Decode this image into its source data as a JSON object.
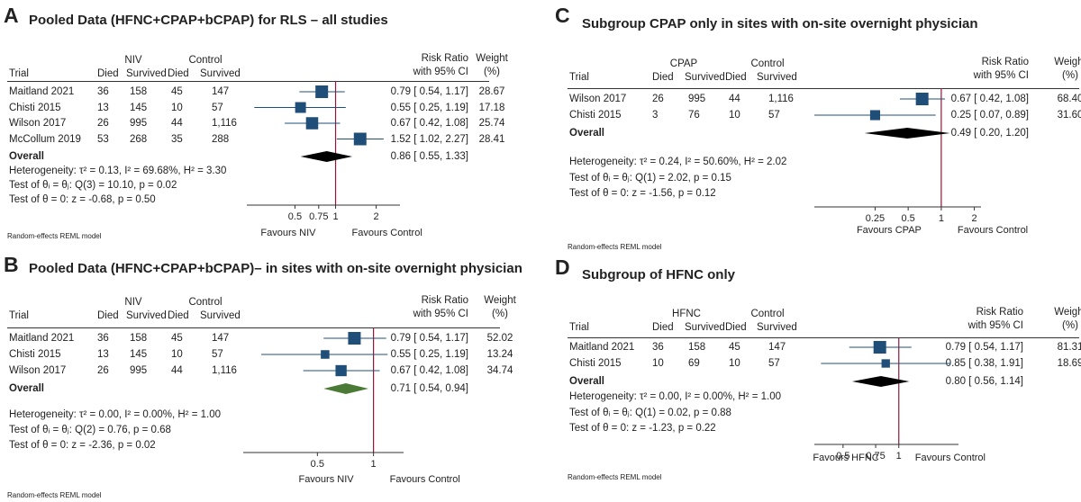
{
  "chart_data": [
    {
      "type": "forest",
      "label": "A",
      "title": "Pooled Data (HFNC+CPAP+bCPAP) for RLS – all studies",
      "group1": "NIV",
      "group2": "Control",
      "col_trial": "Trial",
      "col_died": "Died",
      "col_survived": "Survived",
      "col_rr1": "Risk Ratio",
      "col_rr2": "with 95% CI",
      "col_w1": "Weight",
      "col_w2": "(%)",
      "scale": "log",
      "xlim": [
        0.22,
        3.0
      ],
      "ticks": [
        0.5,
        0.75,
        1,
        2
      ],
      "tick_labels": [
        "0.5",
        "0.75",
        "1",
        "2"
      ],
      "favours_left": "Favours NIV",
      "favours_right": "Favours Control",
      "model": "Random-effects REML model",
      "overall_label": "Overall",
      "diamond_color": "#000000",
      "rows": [
        {
          "trial": "Maitland 2021",
          "d1": "36",
          "s1": "158",
          "d2": "45",
          "s2": "147",
          "rr": 0.79,
          "lo": 0.54,
          "hi": 1.17,
          "ci": "0.79 [ 0.54, 1.17]",
          "weight": "28.67",
          "w": 28.67
        },
        {
          "trial": "Chisti 2015",
          "d1": "13",
          "s1": "145",
          "d2": "10",
          "s2": "57",
          "rr": 0.55,
          "lo": 0.25,
          "hi": 1.19,
          "ci": "0.55 [ 0.25, 1.19]",
          "weight": "17.18",
          "w": 17.18
        },
        {
          "trial": "Wilson 2017",
          "d1": "26",
          "s1": "995",
          "d2": "44",
          "s2": "1,116",
          "rr": 0.67,
          "lo": 0.42,
          "hi": 1.08,
          "ci": "0.67 [ 0.42, 1.08]",
          "weight": "25.74",
          "w": 25.74
        },
        {
          "trial": "McCollum 2019",
          "d1": "53",
          "s1": "268",
          "d2": "35",
          "s2": "288",
          "rr": 1.52,
          "lo": 1.02,
          "hi": 2.27,
          "ci": "1.52 [ 1.02, 2.27]",
          "weight": "28.41",
          "w": 28.41
        }
      ],
      "overall": {
        "rr": 0.86,
        "lo": 0.55,
        "hi": 1.33,
        "ci": "0.86 [ 0.55, 1.33]"
      },
      "stats": [
        "Heterogeneity: τ² = 0.13, I² = 69.68%, H² = 3.30",
        "Test of θᵢ = θⱼ: Q(3) = 10.10, p = 0.02",
        "Test of θ = 0: z = -0.68, p = 0.50"
      ]
    },
    {
      "type": "forest",
      "label": "B",
      "title": "Pooled Data (HFNC+CPAP+bCPAP)– in sites with on-site overnight physician",
      "group1": "NIV",
      "group2": "Control",
      "col_trial": "Trial",
      "col_died": "Died",
      "col_survived": "Survived",
      "col_rr1": "Risk Ratio",
      "col_rr2": "with 95% CI",
      "col_w1": "Weight",
      "col_w2": "(%)",
      "scale": "log",
      "xlim": [
        0.2,
        1.45
      ],
      "ticks": [
        0.5,
        1
      ],
      "tick_labels": [
        "0.5",
        "1"
      ],
      "favours_left": "Favours NIV",
      "favours_right": "Favours Control",
      "model": "Random-effects REML model",
      "overall_label": "Overall",
      "diamond_color": "#4a7a35",
      "rows": [
        {
          "trial": "Maitland 2021",
          "d1": "36",
          "s1": "158",
          "d2": "45",
          "s2": "147",
          "rr": 0.79,
          "lo": 0.54,
          "hi": 1.17,
          "ci": "0.79 [ 0.54, 1.17]",
          "weight": "52.02",
          "w": 52.02
        },
        {
          "trial": "Chisti 2015",
          "d1": "13",
          "s1": "145",
          "d2": "10",
          "s2": "57",
          "rr": 0.55,
          "lo": 0.25,
          "hi": 1.19,
          "ci": "0.55 [ 0.25, 1.19]",
          "weight": "13.24",
          "w": 13.24
        },
        {
          "trial": "Wilson 2017",
          "d1": "26",
          "s1": "995",
          "d2": "44",
          "s2": "1,116",
          "rr": 0.67,
          "lo": 0.42,
          "hi": 1.08,
          "ci": "0.67 [ 0.42, 1.08]",
          "weight": "34.74",
          "w": 34.74
        }
      ],
      "overall": {
        "rr": 0.71,
        "lo": 0.54,
        "hi": 0.94,
        "ci": "0.71 [ 0.54, 0.94]"
      },
      "stats": [
        "Heterogeneity: τ² = 0.00, I² = 0.00%, H² = 1.00",
        "Test of θᵢ = θⱼ: Q(2) = 0.76, p = 0.68",
        "Test of θ = 0: z = -2.36, p = 0.02"
      ]
    },
    {
      "type": "forest",
      "label": "C",
      "title": "Subgroup CPAP only in sites with on-site overnight physician",
      "group1": "CPAP",
      "group2": "Control",
      "col_trial": "Trial",
      "col_died": "Died",
      "col_survived": "Survived",
      "col_rr1": "Risk Ratio",
      "col_rr2": "with 95% CI",
      "col_w1": "Weight",
      "col_w2": "(%)",
      "scale": "log",
      "xlim": [
        0.07,
        2.3
      ],
      "ticks": [
        0.25,
        0.5,
        1,
        2
      ],
      "tick_labels": [
        "0.25",
        "0.5",
        "1",
        "2"
      ],
      "favours_left": "Favours CPAP",
      "favours_right": "Favours Control",
      "model": "Random-effects REML model",
      "overall_label": "Overall",
      "diamond_color": "#000000",
      "rows": [
        {
          "trial": "Wilson 2017",
          "d1": "26",
          "s1": "995",
          "d2": "44",
          "s2": "1,116",
          "rr": 0.67,
          "lo": 0.42,
          "hi": 1.08,
          "ci": "0.67 [ 0.42, 1.08]",
          "weight": "68.40",
          "w": 68.4
        },
        {
          "trial": "Chisti 2015",
          "d1": "3",
          "s1": "76",
          "d2": "10",
          "s2": "57",
          "rr": 0.25,
          "lo": 0.07,
          "hi": 0.89,
          "ci": "0.25 [ 0.07, 0.89]",
          "weight": "31.60",
          "w": 31.6
        }
      ],
      "overall": {
        "rr": 0.49,
        "lo": 0.2,
        "hi": 1.2,
        "ci": "0.49 [ 0.20, 1.20]"
      },
      "stats": [
        "Heterogeneity: τ² = 0.24, I² = 50.60%, H² = 2.02",
        "Test of θᵢ = θⱼ: Q(1) = 2.02, p = 0.15",
        "Test of θ = 0: z = -1.56, p = 0.12"
      ]
    },
    {
      "type": "forest",
      "label": "D",
      "title": "Subgroup of HFNC only",
      "group1": "HFNC",
      "group2": "Control",
      "col_trial": "Trial",
      "col_died": "Died",
      "col_survived": "Survived",
      "col_rr1": "Risk Ratio",
      "col_rr2": "with 95% CI",
      "col_w1": "Weight",
      "col_w2": "(%)",
      "scale": "log",
      "xlim": [
        0.35,
        2.1
      ],
      "ticks": [
        0.5,
        0.75,
        1
      ],
      "tick_labels": [
        "0.5",
        "0.75",
        "1"
      ],
      "favours_left": "Favours HFNC",
      "favours_right": "Favours Control",
      "model": "Random-effects REML model",
      "overall_label": "Overall",
      "diamond_color": "#000000",
      "rows": [
        {
          "trial": "Maitland 2021",
          "d1": "36",
          "s1": "158",
          "d2": "45",
          "s2": "147",
          "rr": 0.79,
          "lo": 0.54,
          "hi": 1.17,
          "ci": "0.79 [ 0.54, 1.17]",
          "weight": "81.31",
          "w": 81.31
        },
        {
          "trial": "Chisti 2015",
          "d1": "10",
          "s1": "69",
          "d2": "10",
          "s2": "57",
          "rr": 0.85,
          "lo": 0.38,
          "hi": 1.91,
          "ci": "0.85 [ 0.38, 1.91]",
          "weight": "18.69",
          "w": 18.69
        }
      ],
      "overall": {
        "rr": 0.8,
        "lo": 0.56,
        "hi": 1.14,
        "ci": "0.80 [ 0.56, 1.14]"
      },
      "stats": [
        "Heterogeneity: τ² = 0.00, I² = 0.00%, H² = 1.00",
        "Test of θᵢ = θⱼ: Q(1) = 0.02, p = 0.88",
        "Test of θ = 0: z = -1.23, p = 0.22"
      ]
    }
  ],
  "colors": {
    "marker": "#1f4e79",
    "ci_line": "#1f4e79",
    "null_line": "#8b1a3a",
    "axis": "#333333"
  }
}
